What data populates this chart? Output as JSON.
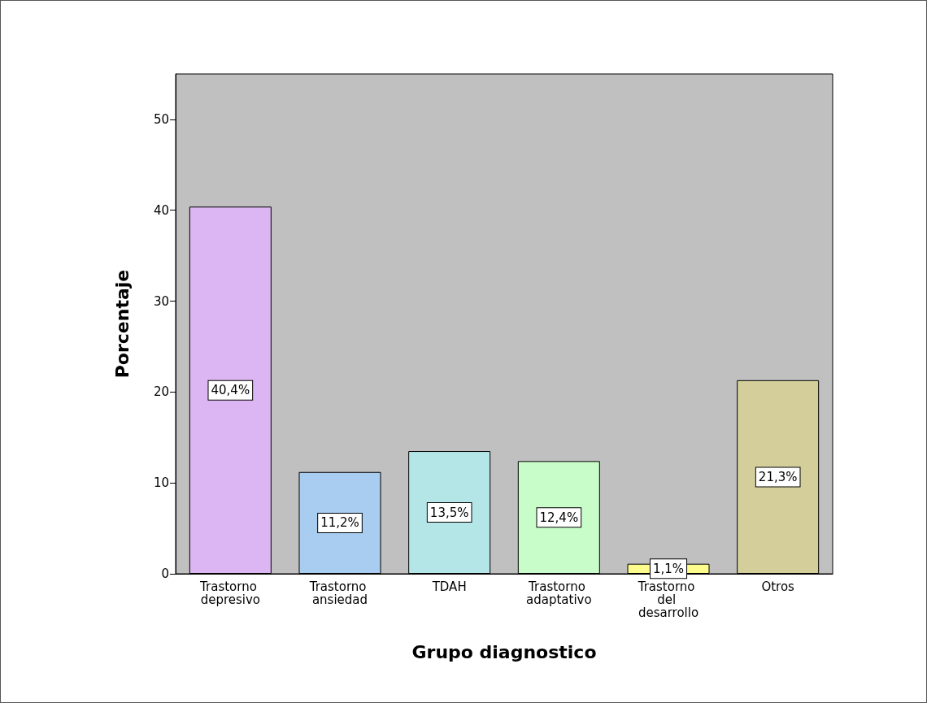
{
  "chart_data": {
    "type": "bar",
    "categories": [
      "Trastorno depresivo",
      "Trastorno ansiedad",
      "TDAH",
      "Trastorno adaptativo",
      "Trastorno del desarrollo",
      "Otros"
    ],
    "values": [
      40.4,
      11.2,
      13.5,
      12.4,
      1.1,
      21.3
    ],
    "colors": [
      "#dcb6f2",
      "#a8cdf0",
      "#b4e6e8",
      "#c8fcc8",
      "#fcfc8c",
      "#d4cf9a"
    ],
    "value_labels": [
      "40,4%",
      "11,2%",
      "13,5%",
      "12,4%",
      "1,1%",
      "21,3%"
    ],
    "xlabel": "Grupo diagnostico",
    "ylabel": "Porcentaje",
    "ylim": [
      0,
      55
    ],
    "yticks": [
      0,
      10,
      20,
      30,
      40,
      50
    ],
    "grid": false
  }
}
